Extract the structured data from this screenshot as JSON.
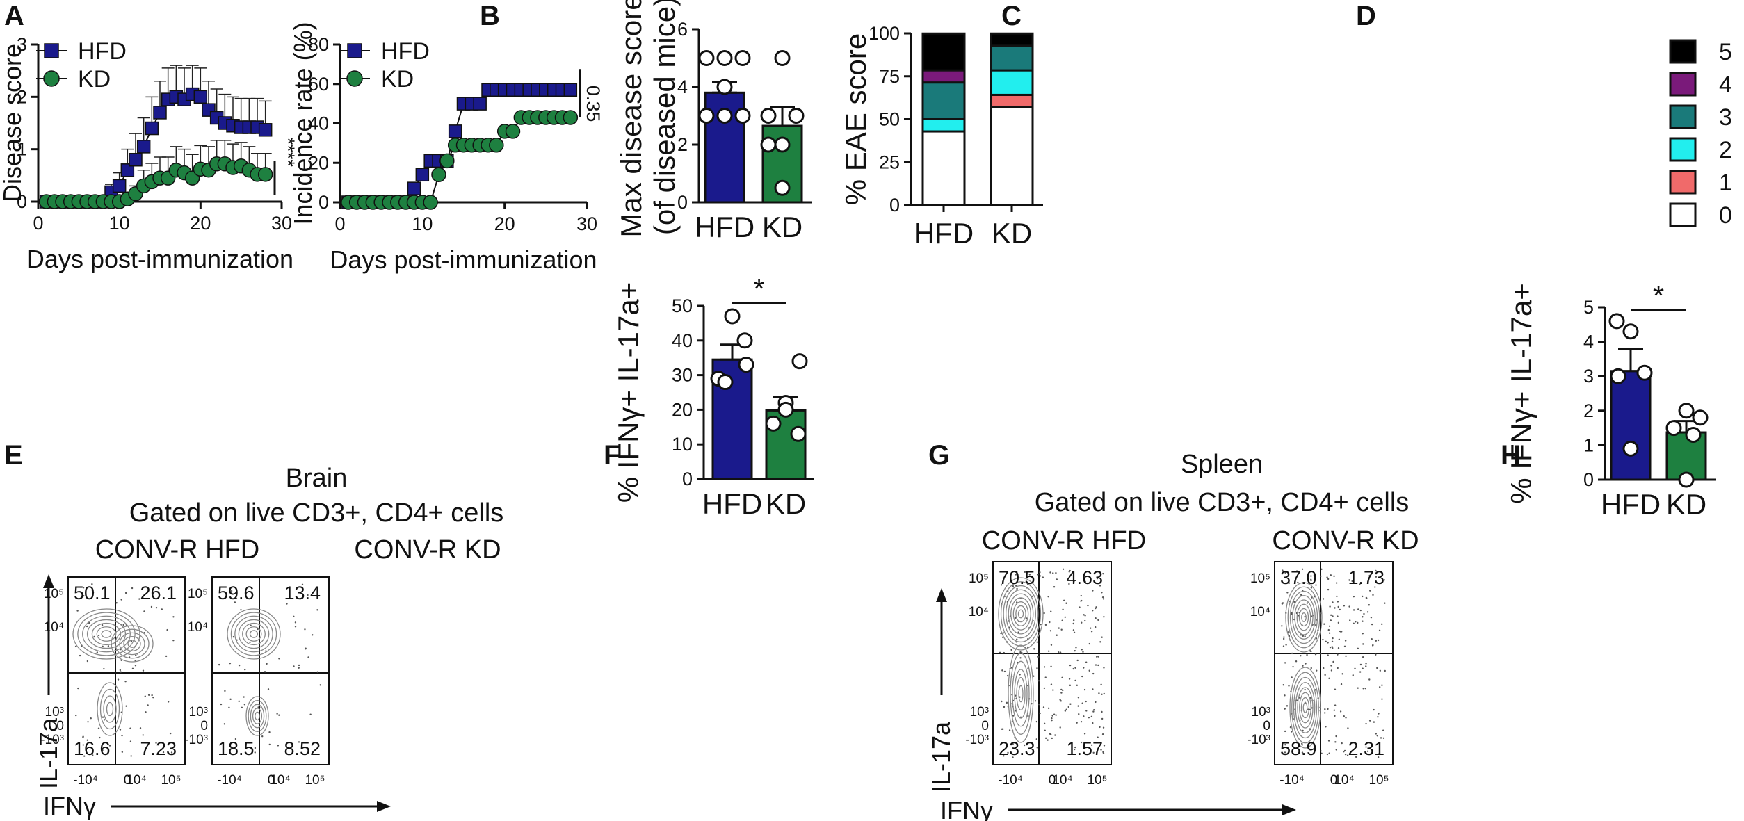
{
  "panel_labels": [
    "A",
    "B",
    "C",
    "D",
    "E",
    "F",
    "G",
    "H"
  ],
  "colors": {
    "hfd": "#1a1a8c",
    "kd": "#1e8040",
    "black": "#000000",
    "purple": "#7a1a7a",
    "teal": "#1a7a7a",
    "cyan": "#22eeee",
    "salmon": "#f06a6a",
    "white": "#ffffff"
  },
  "chart_data": [
    {
      "id": "A",
      "type": "line",
      "xlabel": "Days post-immunization",
      "ylabel": "Disease score",
      "xlim": [
        0,
        30
      ],
      "ylim": [
        0,
        3
      ],
      "xticks": [
        "0",
        "10",
        "20",
        "30"
      ],
      "yticks": [
        "0",
        "1",
        "2",
        "3"
      ],
      "significance": "****",
      "x": [
        1,
        2,
        3,
        4,
        5,
        6,
        7,
        8,
        9,
        10,
        11,
        12,
        13,
        14,
        15,
        16,
        17,
        18,
        19,
        20,
        21,
        22,
        23,
        24,
        25,
        26,
        27,
        28
      ],
      "series": [
        {
          "name": "HFD",
          "marker": "square",
          "values": [
            0,
            0,
            0,
            0,
            0,
            0,
            0,
            0,
            0.18,
            0.3,
            0.6,
            0.8,
            1.05,
            1.4,
            1.7,
            1.95,
            2.0,
            1.95,
            2.05,
            2.0,
            1.75,
            1.6,
            1.5,
            1.45,
            1.42,
            1.42,
            1.42,
            1.37
          ],
          "errors": [
            0,
            0,
            0,
            0,
            0,
            0,
            0,
            0,
            0.15,
            0.25,
            0.4,
            0.5,
            0.55,
            0.6,
            0.6,
            0.6,
            0.6,
            0.6,
            0.55,
            0.55,
            0.55,
            0.55,
            0.55,
            0.55,
            0.55,
            0.55,
            0.55,
            0.55
          ]
        },
        {
          "name": "KD",
          "marker": "circle",
          "values": [
            0,
            0,
            0,
            0,
            0,
            0,
            0,
            0,
            0,
            0,
            0.05,
            0.15,
            0.3,
            0.38,
            0.45,
            0.45,
            0.6,
            0.55,
            0.45,
            0.62,
            0.6,
            0.72,
            0.72,
            0.65,
            0.68,
            0.6,
            0.52,
            0.52
          ],
          "errors": [
            0,
            0,
            0,
            0,
            0,
            0,
            0,
            0,
            0,
            0,
            0.05,
            0.15,
            0.3,
            0.35,
            0.4,
            0.4,
            0.45,
            0.45,
            0.45,
            0.45,
            0.45,
            0.45,
            0.45,
            0.45,
            0.45,
            0.45,
            0.4,
            0.4
          ]
        }
      ]
    },
    {
      "id": "B",
      "type": "line",
      "xlabel": "Days post-immunization",
      "ylabel": "Incidence rate (%)",
      "xlim": [
        0,
        30
      ],
      "ylim": [
        0,
        80
      ],
      "xticks": [
        "0",
        "10",
        "20",
        "30"
      ],
      "yticks": [
        "0",
        "20",
        "40",
        "60",
        "80"
      ],
      "significance": "0.35",
      "x": [
        1,
        2,
        3,
        4,
        5,
        6,
        7,
        8,
        9,
        10,
        11,
        12,
        13,
        14,
        15,
        16,
        17,
        18,
        19,
        20,
        21,
        22,
        23,
        24,
        25,
        26,
        27,
        28
      ],
      "series": [
        {
          "name": "HFD",
          "marker": "square",
          "values": [
            0,
            0,
            0,
            0,
            0,
            0,
            0,
            0,
            7,
            14,
            21,
            21,
            21,
            36,
            50,
            50,
            50,
            57,
            57,
            57,
            57,
            57,
            57,
            57,
            57,
            57,
            57,
            57
          ]
        },
        {
          "name": "KD",
          "marker": "circle",
          "values": [
            0,
            0,
            0,
            0,
            0,
            0,
            0,
            0,
            0,
            0,
            0,
            14,
            21,
            29,
            29,
            29,
            29,
            29,
            29,
            36,
            36,
            43,
            43,
            43,
            43,
            43,
            43,
            43
          ]
        }
      ]
    },
    {
      "id": "C",
      "type": "bar",
      "ylabel": "Max disease score",
      "ylabel2": "(of diseased mice)",
      "ylim": [
        0,
        6
      ],
      "yticks": [
        "0",
        "2",
        "4",
        "6"
      ],
      "categories": [
        "HFD",
        "KD"
      ],
      "values": [
        3.8,
        2.65
      ],
      "errors": [
        0.38,
        0.65
      ],
      "points": [
        [
          5,
          5,
          5,
          4,
          3,
          3,
          3
        ],
        [
          5,
          3,
          3,
          2,
          2,
          0.5
        ]
      ]
    },
    {
      "id": "D",
      "type": "bar",
      "ylabel": "% EAE score",
      "ylim": [
        0,
        100
      ],
      "yticks": [
        "0",
        "25",
        "50",
        "75",
        "100"
      ],
      "categories": [
        "HFD",
        "KD"
      ],
      "legend_labels": [
        "5",
        "4",
        "3",
        "2",
        "1",
        "0"
      ],
      "series": [
        {
          "name": "0",
          "values": [
            42.9,
            57.1
          ]
        },
        {
          "name": "1",
          "values": [
            0,
            7.1
          ]
        },
        {
          "name": "2",
          "values": [
            7.1,
            14.3
          ]
        },
        {
          "name": "3",
          "values": [
            21.4,
            14.3
          ]
        },
        {
          "name": "4",
          "values": [
            7.1,
            0
          ]
        },
        {
          "name": "5",
          "values": [
            21.4,
            7.1
          ]
        }
      ]
    },
    {
      "id": "F",
      "type": "bar",
      "ylabel": "% IFNγ+ IL-17a+",
      "ylim": [
        0,
        50
      ],
      "yticks": [
        "0",
        "10",
        "20",
        "30",
        "40",
        "50"
      ],
      "categories": [
        "HFD",
        "KD"
      ],
      "values": [
        34.5,
        19.8
      ],
      "errors": [
        4.3,
        4.0
      ],
      "points": [
        [
          47,
          40,
          33,
          29,
          28
        ],
        [
          34,
          22,
          20,
          16,
          13
        ]
      ],
      "significance": "*"
    },
    {
      "id": "H",
      "type": "bar",
      "ylabel": "% IFNγ+ IL-17a+",
      "ylim": [
        0,
        5
      ],
      "yticks": [
        "0",
        "1",
        "2",
        "3",
        "4",
        "5"
      ],
      "categories": [
        "HFD",
        "KD"
      ],
      "values": [
        3.15,
        1.37
      ],
      "errors": [
        0.65,
        0.33
      ],
      "points": [
        [
          4.6,
          4.3,
          3.1,
          3.0,
          0.9
        ],
        [
          2.0,
          1.8,
          1.5,
          1.3,
          0.0
        ]
      ],
      "significance": "*"
    }
  ],
  "flow": {
    "E": {
      "title": "Brain",
      "subtitle": "Gated on live CD3+, CD4+ cells",
      "y_axis": "IL-17a",
      "x_axis": "IFNγ",
      "plots": [
        {
          "header": "CONV-R HFD",
          "q": [
            "50.1",
            "26.1",
            "16.6",
            "7.23"
          ]
        },
        {
          "header": "CONV-R KD",
          "q": [
            "59.6",
            "13.4",
            "18.5",
            "8.52"
          ]
        }
      ]
    },
    "G": {
      "title": "Spleen",
      "subtitle": "Gated on live CD3+, CD4+ cells",
      "y_axis": "IL-17a",
      "x_axis": "IFNγ",
      "plots": [
        {
          "header": "CONV-R HFD",
          "q": [
            "70.5",
            "4.63",
            "23.3",
            "1.57"
          ]
        },
        {
          "header": "CONV-R KD",
          "q": [
            "37.0",
            "1.73",
            "58.9",
            "2.31"
          ]
        }
      ]
    },
    "yticks": [
      "10⁵",
      "10⁴",
      "10³",
      "0",
      "-10³"
    ],
    "xticks": [
      "-10⁴",
      "0",
      "10⁴",
      "10⁵"
    ]
  }
}
